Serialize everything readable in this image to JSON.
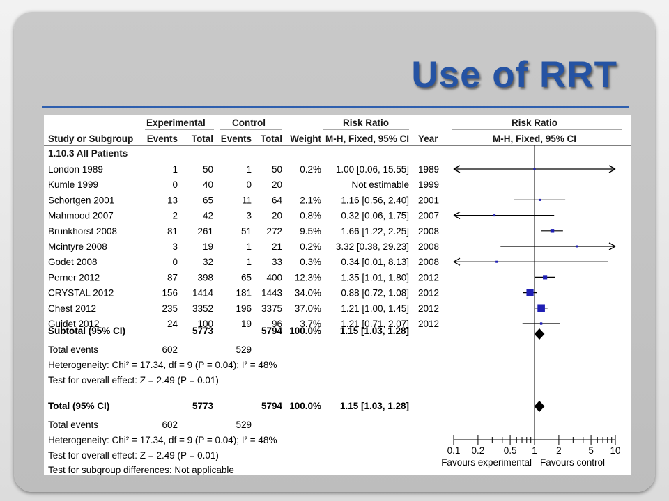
{
  "slide_title": "Use of RRT",
  "chart_data": {
    "type": "forest",
    "headers": {
      "experimental": "Experimental",
      "control": "Control",
      "risk_ratio": "Risk Ratio",
      "risk_ratio_plot": "Risk Ratio",
      "study": "Study or Subgroup",
      "events": "Events",
      "total": "Total",
      "weight": "Weight",
      "method": "M-H, Fixed, 95% CI",
      "year": "Year",
      "method_plot": "M-H, Fixed, 95% CI"
    },
    "subgroup_title": "1.10.3 All Patients",
    "studies": [
      {
        "name": "London 1989",
        "e_events": "1",
        "e_total": "50",
        "c_events": "1",
        "c_total": "50",
        "weight": "0.2%",
        "ci_text": "1.00 [0.06, 15.55]",
        "year": "1989",
        "rr": 1.0,
        "lo": 0.06,
        "hi": 15.55,
        "w": 0.2
      },
      {
        "name": "Kumle 1999",
        "e_events": "0",
        "e_total": "40",
        "c_events": "0",
        "c_total": "20",
        "weight": "",
        "ci_text": "Not estimable",
        "year": "1999",
        "rr": null,
        "lo": null,
        "hi": null,
        "w": 0
      },
      {
        "name": "Schortgen 2001",
        "e_events": "13",
        "e_total": "65",
        "c_events": "11",
        "c_total": "64",
        "weight": "2.1%",
        "ci_text": "1.16 [0.56, 2.40]",
        "year": "2001",
        "rr": 1.16,
        "lo": 0.56,
        "hi": 2.4,
        "w": 2.1
      },
      {
        "name": "Mahmood 2007",
        "e_events": "2",
        "e_total": "42",
        "c_events": "3",
        "c_total": "20",
        "weight": "0.8%",
        "ci_text": "0.32 [0.06, 1.75]",
        "year": "2007",
        "rr": 0.32,
        "lo": 0.06,
        "hi": 1.75,
        "w": 0.8
      },
      {
        "name": "Brunkhorst 2008",
        "e_events": "81",
        "e_total": "261",
        "c_events": "51",
        "c_total": "272",
        "weight": "9.5%",
        "ci_text": "1.66 [1.22, 2.25]",
        "year": "2008",
        "rr": 1.66,
        "lo": 1.22,
        "hi": 2.25,
        "w": 9.5
      },
      {
        "name": "Mcintyre 2008",
        "e_events": "3",
        "e_total": "19",
        "c_events": "1",
        "c_total": "21",
        "weight": "0.2%",
        "ci_text": "3.32 [0.38, 29.23]",
        "year": "2008",
        "rr": 3.32,
        "lo": 0.38,
        "hi": 29.23,
        "w": 0.2
      },
      {
        "name": "Godet  2008",
        "e_events": "0",
        "e_total": "32",
        "c_events": "1",
        "c_total": "33",
        "weight": "0.3%",
        "ci_text": "0.34 [0.01, 8.13]",
        "year": "2008",
        "rr": 0.34,
        "lo": 0.01,
        "hi": 8.13,
        "w": 0.3
      },
      {
        "name": "Perner 2012",
        "e_events": "87",
        "e_total": "398",
        "c_events": "65",
        "c_total": "400",
        "weight": "12.3%",
        "ci_text": "1.35 [1.01, 1.80]",
        "year": "2012",
        "rr": 1.35,
        "lo": 1.01,
        "hi": 1.8,
        "w": 12.3
      },
      {
        "name": "CRYSTAL 2012",
        "e_events": "156",
        "e_total": "1414",
        "c_events": "181",
        "c_total": "1443",
        "weight": "34.0%",
        "ci_text": "0.88 [0.72, 1.08]",
        "year": "2012",
        "rr": 0.88,
        "lo": 0.72,
        "hi": 1.08,
        "w": 34.0
      },
      {
        "name": "Chest 2012",
        "e_events": "235",
        "e_total": "3352",
        "c_events": "196",
        "c_total": "3375",
        "weight": "37.0%",
        "ci_text": "1.21 [1.00, 1.45]",
        "year": "2012",
        "rr": 1.21,
        "lo": 1.0,
        "hi": 1.45,
        "w": 37.0
      },
      {
        "name": "Guidet 2012",
        "e_events": "24",
        "e_total": "100",
        "c_events": "19",
        "c_total": "96",
        "weight": "3.7%",
        "ci_text": "1.21 [0.71, 2.07]",
        "year": "2012",
        "rr": 1.21,
        "lo": 0.71,
        "hi": 2.07,
        "w": 3.7
      }
    ],
    "subtotal": {
      "label": "Subtotal (95% CI)",
      "e_total": "5773",
      "c_total": "5794",
      "weight": "100.0%",
      "ci_text": "1.15 [1.03, 1.28]",
      "rr": 1.15,
      "lo": 1.03,
      "hi": 1.28
    },
    "subtotal_events": {
      "label": "Total events",
      "e": "602",
      "c": "529"
    },
    "heterogeneity": "Heterogeneity: Chi² = 17.34, df = 9 (P = 0.04); I² = 48%",
    "overall_effect": "Test for overall effect: Z = 2.49 (P = 0.01)",
    "total": {
      "label": "Total (95% CI)",
      "e_total": "5773",
      "c_total": "5794",
      "weight": "100.0%",
      "ci_text": "1.15 [1.03, 1.28]",
      "rr": 1.15,
      "lo": 1.03,
      "hi": 1.28
    },
    "total_events": {
      "label": "Total events",
      "e": "602",
      "c": "529"
    },
    "total_heterogeneity": "Heterogeneity: Chi² = 17.34, df = 9 (P = 0.04); I² = 48%",
    "total_overall_effect": "Test for overall effect: Z = 2.49 (P = 0.01)",
    "subgroup_differences": "Test for subgroup differences: Not applicable",
    "x_scale": "log",
    "x_ticks": [
      0.1,
      0.2,
      0.5,
      1,
      2,
      5,
      10
    ],
    "x_tick_labels": [
      "0.1",
      "0.2",
      "0.5",
      "1",
      "2",
      "5",
      "10"
    ],
    "xlim": [
      0.1,
      10
    ],
    "favours_left": "Favours experimental",
    "favours_right": "Favours control",
    "colors": {
      "square": "#1f1fb4",
      "diamond": "#000000",
      "line": "#000000"
    }
  }
}
